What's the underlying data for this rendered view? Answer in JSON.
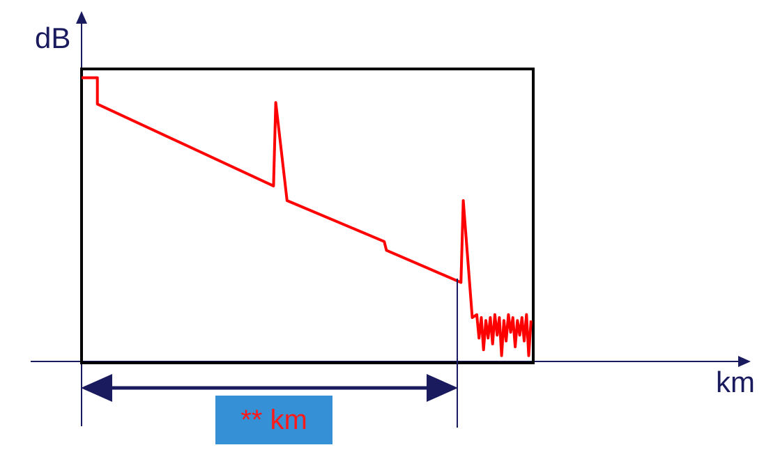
{
  "chart_data": {
    "type": "line",
    "title": "",
    "xlabel": "km",
    "ylabel": "dB",
    "grid": false,
    "legend": "none",
    "series": [
      {
        "color": "#ff0000",
        "trace": [
          [
            0,
            97
          ],
          [
            3.5,
            97
          ],
          [
            3.5,
            88
          ],
          [
            42.5,
            60
          ],
          [
            43,
            88.5
          ],
          [
            45.5,
            55
          ],
          [
            67,
            41
          ],
          [
            67.5,
            38
          ],
          [
            84,
            27
          ],
          [
            84.5,
            55
          ],
          [
            86.5,
            15
          ],
          [
            87.5,
            16
          ],
          [
            88,
            8
          ],
          [
            88.5,
            15
          ],
          [
            89,
            4
          ],
          [
            89.5,
            14
          ],
          [
            90,
            8
          ],
          [
            90.5,
            15
          ],
          [
            91,
            6
          ],
          [
            91.5,
            16
          ],
          [
            92,
            9
          ],
          [
            92.5,
            15
          ],
          [
            93,
            2
          ],
          [
            93.5,
            14
          ],
          [
            94,
            7
          ],
          [
            94.5,
            16
          ],
          [
            95,
            10
          ],
          [
            95.5,
            15
          ],
          [
            96,
            5
          ],
          [
            96.5,
            14
          ],
          [
            97,
            9
          ],
          [
            97.5,
            15
          ],
          [
            98,
            7
          ],
          [
            98.5,
            16
          ],
          [
            99,
            2
          ],
          [
            99.5,
            14
          ]
        ]
      }
    ],
    "annotations": {
      "distance_label": "** km",
      "distance_box_color": "#3590d6",
      "distance_from_x": 0,
      "distance_to_x": 83.5
    },
    "axis_color": "#1a1a5e",
    "frame_color": "#000000"
  }
}
